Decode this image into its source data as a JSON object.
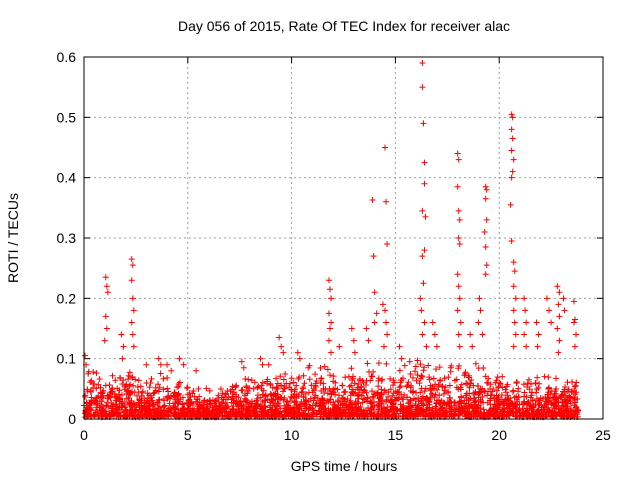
{
  "chart_data": {
    "type": "scatter",
    "title": "Day 056 of 2015, Rate Of TEC Index for receiver alac",
    "xlabel": "GPS time / hours",
    "ylabel": "ROTI / TECUs",
    "xlim": [
      0,
      25
    ],
    "ylim": [
      0,
      0.6
    ],
    "xticks": [
      "0",
      "5",
      "10",
      "15",
      "20",
      "25"
    ],
    "yticks": [
      "0",
      "0.1",
      "0.2",
      "0.3",
      "0.4",
      "0.5",
      "0.6"
    ],
    "grid": true,
    "marker": "+",
    "color": "#ff0000",
    "series": [
      {
        "name": "ROTI",
        "highlighted_points": [
          [
            0.05,
            0.105
          ],
          [
            0.1,
            0.09
          ],
          [
            0.2,
            0.075
          ],
          [
            1.05,
            0.235
          ],
          [
            1.1,
            0.22
          ],
          [
            1.15,
            0.21
          ],
          [
            1.05,
            0.17
          ],
          [
            1.1,
            0.15
          ],
          [
            1.0,
            0.13
          ],
          [
            1.8,
            0.14
          ],
          [
            1.9,
            0.12
          ],
          [
            1.85,
            0.1
          ],
          [
            2.3,
            0.265
          ],
          [
            2.35,
            0.255
          ],
          [
            2.3,
            0.23
          ],
          [
            2.35,
            0.2
          ],
          [
            2.4,
            0.18
          ],
          [
            2.3,
            0.16
          ],
          [
            2.35,
            0.14
          ],
          [
            2.4,
            0.12
          ],
          [
            3.0,
            0.09
          ],
          [
            3.6,
            0.1
          ],
          [
            3.7,
            0.09
          ],
          [
            4.0,
            0.09
          ],
          [
            4.2,
            0.08
          ],
          [
            4.6,
            0.1
          ],
          [
            4.8,
            0.09
          ],
          [
            5.4,
            0.08
          ],
          [
            7.6,
            0.095
          ],
          [
            7.7,
            0.085
          ],
          [
            8.5,
            0.1
          ],
          [
            8.6,
            0.09
          ],
          [
            8.9,
            0.09
          ],
          [
            9.4,
            0.135
          ],
          [
            9.5,
            0.12
          ],
          [
            9.6,
            0.11
          ],
          [
            10.3,
            0.11
          ],
          [
            10.4,
            0.1
          ],
          [
            10.8,
            0.085
          ],
          [
            11.8,
            0.23
          ],
          [
            11.85,
            0.215
          ],
          [
            11.9,
            0.2
          ],
          [
            11.8,
            0.175
          ],
          [
            11.9,
            0.16
          ],
          [
            11.85,
            0.15
          ],
          [
            11.8,
            0.13
          ],
          [
            11.9,
            0.11
          ],
          [
            12.3,
            0.12
          ],
          [
            12.9,
            0.15
          ],
          [
            13.0,
            0.13
          ],
          [
            13.05,
            0.11
          ],
          [
            13.6,
            0.15
          ],
          [
            13.7,
            0.13
          ],
          [
            13.9,
            0.363
          ],
          [
            13.95,
            0.27
          ],
          [
            14.0,
            0.21
          ],
          [
            14.1,
            0.175
          ],
          [
            14.0,
            0.16
          ],
          [
            14.5,
            0.45
          ],
          [
            14.55,
            0.36
          ],
          [
            14.6,
            0.29
          ],
          [
            14.4,
            0.19
          ],
          [
            14.5,
            0.18
          ],
          [
            14.55,
            0.16
          ],
          [
            14.6,
            0.14
          ],
          [
            14.45,
            0.12
          ],
          [
            15.2,
            0.12
          ],
          [
            15.3,
            0.1
          ],
          [
            16.3,
            0.59
          ],
          [
            16.3,
            0.55
          ],
          [
            16.35,
            0.49
          ],
          [
            16.4,
            0.425
          ],
          [
            16.4,
            0.39
          ],
          [
            16.3,
            0.345
          ],
          [
            16.45,
            0.335
          ],
          [
            16.4,
            0.28
          ],
          [
            16.3,
            0.27
          ],
          [
            16.35,
            0.225
          ],
          [
            16.2,
            0.2
          ],
          [
            16.25,
            0.18
          ],
          [
            16.4,
            0.16
          ],
          [
            16.3,
            0.14
          ],
          [
            16.5,
            0.12
          ],
          [
            16.8,
            0.16
          ],
          [
            16.9,
            0.14
          ],
          [
            17.0,
            0.12
          ],
          [
            18.0,
            0.44
          ],
          [
            18.05,
            0.43
          ],
          [
            18.0,
            0.385
          ],
          [
            18.05,
            0.345
          ],
          [
            18.1,
            0.33
          ],
          [
            18.05,
            0.3
          ],
          [
            18.1,
            0.29
          ],
          [
            18.0,
            0.24
          ],
          [
            18.05,
            0.22
          ],
          [
            18.1,
            0.2
          ],
          [
            18.0,
            0.18
          ],
          [
            18.15,
            0.16
          ],
          [
            18.05,
            0.14
          ],
          [
            18.1,
            0.12
          ],
          [
            18.6,
            0.14
          ],
          [
            18.7,
            0.12
          ],
          [
            19.05,
            0.2
          ],
          [
            19.1,
            0.18
          ],
          [
            19.0,
            0.16
          ],
          [
            19.2,
            0.14
          ],
          [
            19.35,
            0.385
          ],
          [
            19.4,
            0.38
          ],
          [
            19.35,
            0.365
          ],
          [
            19.4,
            0.33
          ],
          [
            19.3,
            0.31
          ],
          [
            19.35,
            0.285
          ],
          [
            19.4,
            0.255
          ],
          [
            19.35,
            0.24
          ],
          [
            20.6,
            0.505
          ],
          [
            20.65,
            0.5
          ],
          [
            20.6,
            0.48
          ],
          [
            20.65,
            0.465
          ],
          [
            20.6,
            0.445
          ],
          [
            20.7,
            0.43
          ],
          [
            20.65,
            0.41
          ],
          [
            20.6,
            0.4
          ],
          [
            20.55,
            0.355
          ],
          [
            20.6,
            0.295
          ],
          [
            20.7,
            0.26
          ],
          [
            20.75,
            0.245
          ],
          [
            20.7,
            0.22
          ],
          [
            20.8,
            0.2
          ],
          [
            20.7,
            0.18
          ],
          [
            20.75,
            0.16
          ],
          [
            20.8,
            0.14
          ],
          [
            20.7,
            0.12
          ],
          [
            21.2,
            0.2
          ],
          [
            21.25,
            0.18
          ],
          [
            21.3,
            0.16
          ],
          [
            21.2,
            0.14
          ],
          [
            21.3,
            0.12
          ],
          [
            21.8,
            0.16
          ],
          [
            21.9,
            0.14
          ],
          [
            21.85,
            0.12
          ],
          [
            22.3,
            0.2
          ],
          [
            22.4,
            0.18
          ],
          [
            22.5,
            0.16
          ],
          [
            22.8,
            0.22
          ],
          [
            22.9,
            0.21
          ],
          [
            22.85,
            0.19
          ],
          [
            22.9,
            0.17
          ],
          [
            22.8,
            0.15
          ],
          [
            22.9,
            0.13
          ],
          [
            22.85,
            0.11
          ],
          [
            23.1,
            0.2
          ],
          [
            23.15,
            0.18
          ],
          [
            23.6,
            0.195
          ],
          [
            23.65,
            0.165
          ],
          [
            23.6,
            0.16
          ],
          [
            23.7,
            0.14
          ],
          [
            23.65,
            0.12
          ]
        ],
        "baseline_profile": [
          [
            0,
            0.06
          ],
          [
            1,
            0.055
          ],
          [
            2,
            0.05
          ],
          [
            3,
            0.05
          ],
          [
            4,
            0.05
          ],
          [
            5,
            0.035
          ],
          [
            6,
            0.035
          ],
          [
            7,
            0.04
          ],
          [
            8,
            0.05
          ],
          [
            9,
            0.05
          ],
          [
            10,
            0.05
          ],
          [
            11,
            0.055
          ],
          [
            12,
            0.055
          ],
          [
            13,
            0.055
          ],
          [
            14,
            0.06
          ],
          [
            15,
            0.06
          ],
          [
            16,
            0.065
          ],
          [
            17,
            0.06
          ],
          [
            18,
            0.065
          ],
          [
            19,
            0.06
          ],
          [
            20,
            0.05
          ],
          [
            21,
            0.045
          ],
          [
            22,
            0.05
          ],
          [
            23,
            0.05
          ],
          [
            23.8,
            0.04
          ]
        ]
      }
    ]
  }
}
